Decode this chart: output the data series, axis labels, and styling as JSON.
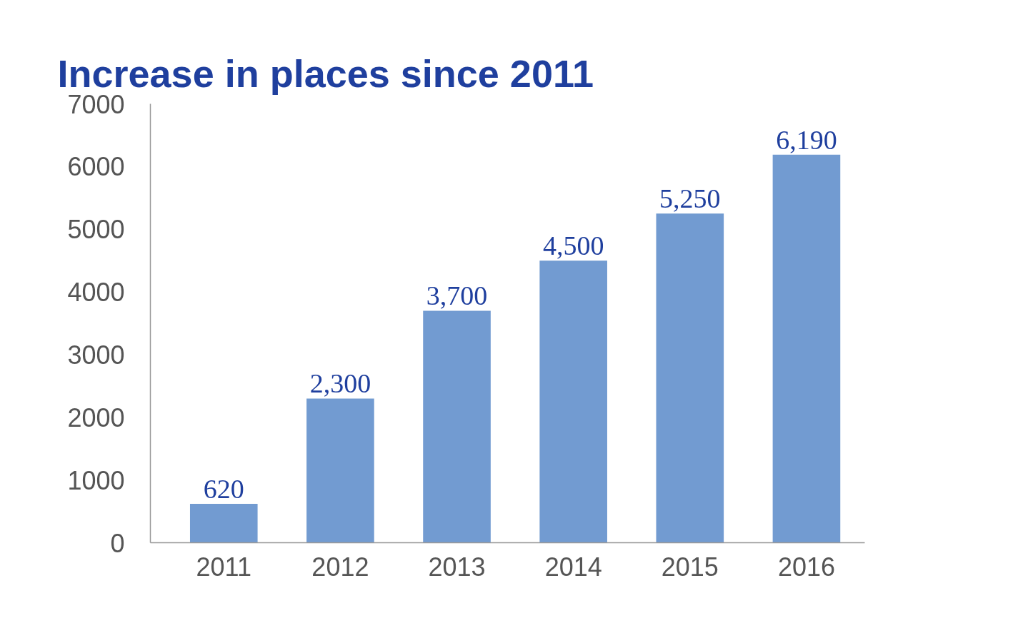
{
  "chart_data": {
    "type": "bar",
    "title": "Increase in places since 2011",
    "categories": [
      "2011",
      "2012",
      "2013",
      "2014",
      "2015",
      "2016"
    ],
    "values": [
      620,
      2300,
      3700,
      4500,
      5250,
      6190
    ],
    "value_labels": [
      "620",
      "2,300",
      "3,700",
      "4,500",
      "5,250",
      "6,190"
    ],
    "color": "#729bd1",
    "ylim": [
      0,
      7000
    ],
    "yticks": [
      0,
      1000,
      2000,
      3000,
      4000,
      5000,
      6000,
      7000
    ],
    "grid": false
  }
}
